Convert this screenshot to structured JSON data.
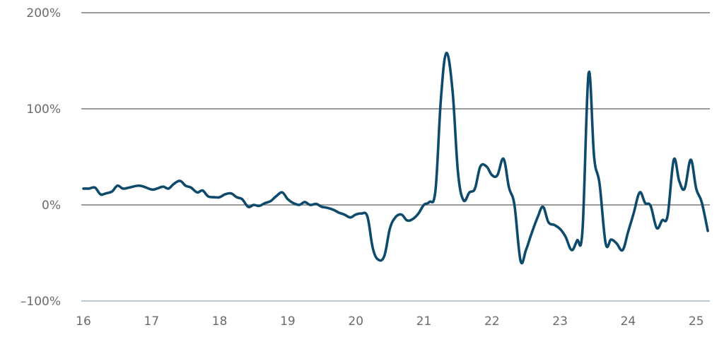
{
  "chart_data": {
    "type": "line",
    "title": "",
    "xlabel": "",
    "ylabel": "",
    "xlim": [
      16,
      25.2
    ],
    "ylim": [
      -100,
      200
    ],
    "y_ticks": [
      {
        "value": 200,
        "label": "200%"
      },
      {
        "value": 100,
        "label": "100%"
      },
      {
        "value": 0,
        "label": "0%"
      },
      {
        "value": -100,
        "label": "–100%"
      }
    ],
    "x_ticks": [
      {
        "value": 16,
        "label": "16"
      },
      {
        "value": 17,
        "label": "17"
      },
      {
        "value": 18,
        "label": "18"
      },
      {
        "value": 19,
        "label": "19"
      },
      {
        "value": 20,
        "label": "20"
      },
      {
        "value": 21,
        "label": "21"
      },
      {
        "value": 22,
        "label": "22"
      },
      {
        "value": 23,
        "label": "23"
      },
      {
        "value": 24,
        "label": "24"
      },
      {
        "value": 25,
        "label": "25"
      }
    ],
    "line_color": "#0d4a6b",
    "series": [
      {
        "name": "series",
        "points": [
          [
            16.0,
            17
          ],
          [
            16.08,
            17
          ],
          [
            16.17,
            18
          ],
          [
            16.25,
            11
          ],
          [
            16.33,
            12
          ],
          [
            16.42,
            14
          ],
          [
            16.5,
            20
          ],
          [
            16.58,
            17
          ],
          [
            16.67,
            18
          ],
          [
            16.83,
            20
          ],
          [
            17.0,
            16
          ],
          [
            17.08,
            17
          ],
          [
            17.17,
            19
          ],
          [
            17.25,
            17
          ],
          [
            17.33,
            22
          ],
          [
            17.42,
            25
          ],
          [
            17.5,
            20
          ],
          [
            17.58,
            18
          ],
          [
            17.67,
            13
          ],
          [
            17.75,
            15
          ],
          [
            17.83,
            9
          ],
          [
            17.92,
            8
          ],
          [
            18.0,
            8
          ],
          [
            18.08,
            11
          ],
          [
            18.17,
            12
          ],
          [
            18.25,
            8
          ],
          [
            18.33,
            6
          ],
          [
            18.42,
            -2
          ],
          [
            18.5,
            0
          ],
          [
            18.58,
            -1
          ],
          [
            18.67,
            2
          ],
          [
            18.75,
            4
          ],
          [
            18.83,
            9
          ],
          [
            18.92,
            13
          ],
          [
            19.0,
            6
          ],
          [
            19.08,
            2
          ],
          [
            19.17,
            0
          ],
          [
            19.25,
            3
          ],
          [
            19.33,
            0
          ],
          [
            19.42,
            1
          ],
          [
            19.5,
            -2
          ],
          [
            19.58,
            -3
          ],
          [
            19.67,
            -5
          ],
          [
            19.75,
            -8
          ],
          [
            19.83,
            -10
          ],
          [
            19.92,
            -13
          ],
          [
            20.0,
            -10
          ],
          [
            20.08,
            -9
          ],
          [
            20.17,
            -12
          ],
          [
            20.25,
            -45
          ],
          [
            20.33,
            -57
          ],
          [
            20.42,
            -53
          ],
          [
            20.5,
            -25
          ],
          [
            20.58,
            -13
          ],
          [
            20.67,
            -10
          ],
          [
            20.75,
            -16
          ],
          [
            20.83,
            -15
          ],
          [
            20.92,
            -9
          ],
          [
            21.0,
            0
          ],
          [
            21.08,
            3
          ],
          [
            21.17,
            15
          ],
          [
            21.25,
            110
          ],
          [
            21.33,
            158
          ],
          [
            21.42,
            120
          ],
          [
            21.5,
            35
          ],
          [
            21.58,
            5
          ],
          [
            21.67,
            13
          ],
          [
            21.75,
            17
          ],
          [
            21.83,
            40
          ],
          [
            21.92,
            40
          ],
          [
            22.0,
            31
          ],
          [
            22.08,
            31
          ],
          [
            22.17,
            48
          ],
          [
            22.25,
            18
          ],
          [
            22.33,
            0
          ],
          [
            22.42,
            -58
          ],
          [
            22.5,
            -47
          ],
          [
            22.58,
            -30
          ],
          [
            22.67,
            -13
          ],
          [
            22.75,
            -2
          ],
          [
            22.83,
            -18
          ],
          [
            22.92,
            -21
          ],
          [
            23.0,
            -25
          ],
          [
            23.08,
            -33
          ],
          [
            23.17,
            -47
          ],
          [
            23.25,
            -37
          ],
          [
            23.33,
            -26
          ],
          [
            23.42,
            137
          ],
          [
            23.5,
            50
          ],
          [
            23.58,
            22
          ],
          [
            23.67,
            -40
          ],
          [
            23.75,
            -36
          ],
          [
            23.83,
            -40
          ],
          [
            23.92,
            -47
          ],
          [
            24.0,
            -28
          ],
          [
            24.08,
            -9
          ],
          [
            24.17,
            13
          ],
          [
            24.25,
            2
          ],
          [
            24.33,
            -1
          ],
          [
            24.42,
            -24
          ],
          [
            24.5,
            -16
          ],
          [
            24.58,
            -11
          ],
          [
            24.67,
            47
          ],
          [
            24.75,
            25
          ],
          [
            24.83,
            17
          ],
          [
            24.92,
            47
          ],
          [
            25.0,
            17
          ],
          [
            25.08,
            3
          ],
          [
            25.17,
            -27
          ]
        ]
      }
    ]
  }
}
